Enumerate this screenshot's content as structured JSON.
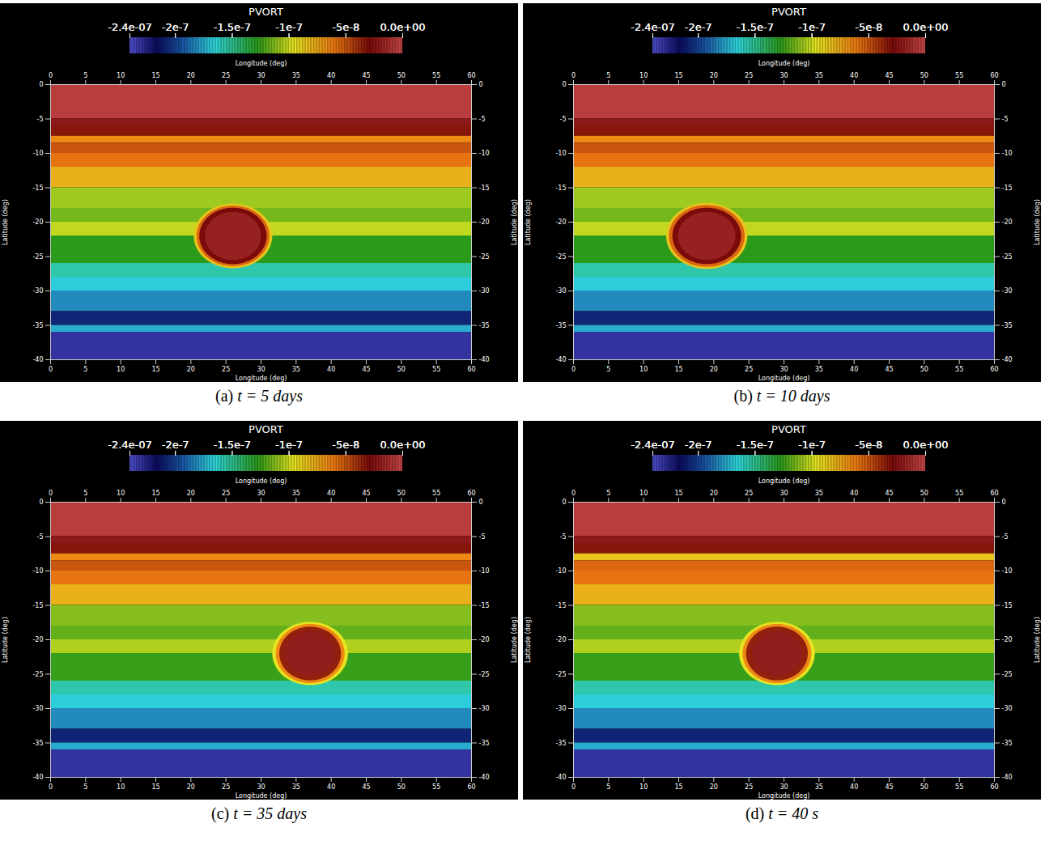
{
  "chart_data": [
    {
      "type": "heatmap",
      "title": "(a) t = 5 days",
      "xlabel": "Longitude (deg)",
      "ylabel": "Latitude (deg)",
      "xlim": [
        0,
        60
      ],
      "xticks": [
        0,
        5,
        10,
        15,
        20,
        25,
        30,
        35,
        40,
        45,
        50,
        55,
        60
      ],
      "ylim": [
        -40,
        0
      ],
      "yticks": [
        0,
        -5,
        -10,
        -15,
        -20,
        -25,
        -30,
        -35,
        -40
      ],
      "colorbar": {
        "title": "PVORT",
        "range": [
          -2.4e-07,
          0
        ],
        "ticks": [
          {
            "value": -2.4e-07,
            "label": "-2.4e-07"
          },
          {
            "value": -2e-07,
            "label": "-2e-7"
          },
          {
            "value": -1.5e-07,
            "label": "-1.5e-7"
          },
          {
            "value": -1e-07,
            "label": "-1e-7"
          },
          {
            "value": -5e-08,
            "label": "-5e-8"
          },
          {
            "value": 0,
            "label": "0.0e+00"
          }
        ]
      },
      "bands": {
        "lat_edges": [
          0,
          -5,
          -6,
          -7.5,
          -8.5,
          -10,
          -12,
          -15,
          -18,
          -20,
          -22,
          -26,
          -28,
          -30,
          -33,
          -35,
          -36,
          -40
        ],
        "values": [
          -5e-09,
          -2.2e-08,
          -3.2e-08,
          -6.5e-08,
          -5e-08,
          -5.8e-08,
          -7.8e-08,
          -1.08e-07,
          -1.15e-07,
          -1.02e-07,
          -1.27e-07,
          -1.55e-07,
          -1.68e-07,
          -1.82e-07,
          -2.08e-07,
          -1.75e-07,
          -2.3e-07
        ]
      },
      "vortex": {
        "lon": 26,
        "lat": -22,
        "rings": [
          {
            "rlon": 5.6,
            "rlat": 4.7,
            "value": -8.5e-08
          },
          {
            "rlon": 5.2,
            "rlat": 4.4,
            "value": -5.5e-08
          },
          {
            "rlon": 4.8,
            "rlat": 4.1,
            "value": -2.9e-08
          },
          {
            "rlon": 4.0,
            "rlat": 3.5,
            "value": -1.8e-08
          }
        ]
      }
    },
    {
      "type": "heatmap",
      "title": "(b) t = 10 days",
      "xlabel": "Longitude (deg)",
      "ylabel": "Latitude (deg)",
      "xlim": [
        0,
        60
      ],
      "xticks": [
        0,
        5,
        10,
        15,
        20,
        25,
        30,
        35,
        40,
        45,
        50,
        55,
        60
      ],
      "ylim": [
        -40,
        0
      ],
      "yticks": [
        0,
        -5,
        -10,
        -15,
        -20,
        -25,
        -30,
        -35,
        -40
      ],
      "colorbar": {
        "title": "PVORT",
        "range": [
          -2.4e-07,
          0
        ],
        "ticks": [
          {
            "value": -2.4e-07,
            "label": "-2.4e-07"
          },
          {
            "value": -2e-07,
            "label": "-2e-7"
          },
          {
            "value": -1.5e-07,
            "label": "-1.5e-7"
          },
          {
            "value": -1e-07,
            "label": "-1e-7"
          },
          {
            "value": -5e-08,
            "label": "-5e-8"
          },
          {
            "value": 0,
            "label": "0.0e+00"
          }
        ]
      },
      "bands": {
        "lat_edges": [
          0,
          -5,
          -6,
          -7.5,
          -8.5,
          -10,
          -12,
          -15,
          -18,
          -20,
          -22,
          -26,
          -28,
          -30,
          -33,
          -35,
          -36,
          -40
        ],
        "values": [
          -5e-09,
          -2.2e-08,
          -3.2e-08,
          -6.5e-08,
          -5e-08,
          -5.8e-08,
          -7.8e-08,
          -1.08e-07,
          -1.15e-07,
          -1.02e-07,
          -1.27e-07,
          -1.55e-07,
          -1.68e-07,
          -1.82e-07,
          -2.08e-07,
          -1.75e-07,
          -2.3e-07
        ]
      },
      "vortex": {
        "lon": 19,
        "lat": -22,
        "rings": [
          {
            "rlon": 5.8,
            "rlat": 4.8,
            "value": -8.5e-08
          },
          {
            "rlon": 5.4,
            "rlat": 4.5,
            "value": -5.5e-08
          },
          {
            "rlon": 4.9,
            "rlat": 4.1,
            "value": -2.9e-08
          },
          {
            "rlon": 4.1,
            "rlat": 3.5,
            "value": -1.8e-08
          }
        ]
      }
    },
    {
      "type": "heatmap",
      "title": "(c) t = 35 days",
      "xlabel": "Longitude (deg)",
      "ylabel": "Latitude (deg)",
      "xlim": [
        0,
        60
      ],
      "xticks": [
        0,
        5,
        10,
        15,
        20,
        25,
        30,
        35,
        40,
        45,
        50,
        55,
        60
      ],
      "ylim": [
        -40,
        0
      ],
      "yticks": [
        0,
        -5,
        -10,
        -15,
        -20,
        -25,
        -30,
        -35,
        -40
      ],
      "colorbar": {
        "title": "PVORT",
        "range": [
          -2.4e-07,
          0
        ],
        "ticks": [
          {
            "value": -2.4e-07,
            "label": "-2.4e-07"
          },
          {
            "value": -2e-07,
            "label": "-2e-7"
          },
          {
            "value": -1.5e-07,
            "label": "-1.5e-7"
          },
          {
            "value": -1e-07,
            "label": "-1e-7"
          },
          {
            "value": -5e-08,
            "label": "-5e-8"
          },
          {
            "value": 0,
            "label": "0.0e+00"
          }
        ]
      },
      "bands": {
        "lat_edges": [
          0,
          -5,
          -6,
          -7.5,
          -8.5,
          -10,
          -12,
          -15,
          -18,
          -20,
          -22,
          -26,
          -28,
          -30,
          -33,
          -35,
          -36,
          -40
        ],
        "values": [
          -5e-09,
          -2.2e-08,
          -3.2e-08,
          -6.5e-08,
          -5e-08,
          -5.8e-08,
          -7.8e-08,
          -1.12e-07,
          -1.18e-07,
          -1.05e-07,
          -1.25e-07,
          -1.55e-07,
          -1.68e-07,
          -1.82e-07,
          -2.08e-07,
          -1.75e-07,
          -2.3e-07
        ]
      },
      "vortex": {
        "lon": 37,
        "lat": -22,
        "rings": [
          {
            "rlon": 5.4,
            "rlat": 4.6,
            "value": -9.5e-08
          },
          {
            "rlon": 4.9,
            "rlat": 4.3,
            "value": -6.5e-08
          },
          {
            "rlon": 4.4,
            "rlat": 3.9,
            "value": -3.5e-08
          },
          {
            "rlon": 3.6,
            "rlat": 3.2,
            "value": -2e-08
          }
        ]
      }
    },
    {
      "type": "heatmap",
      "title": "(d) t = 40 s",
      "xlabel": "Longitude (deg)",
      "ylabel": "Latitude (deg)",
      "xlim": [
        0,
        60
      ],
      "xticks": [
        0,
        5,
        10,
        15,
        20,
        25,
        30,
        35,
        40,
        45,
        50,
        55,
        60
      ],
      "ylim": [
        -40,
        0
      ],
      "yticks": [
        0,
        -5,
        -10,
        -15,
        -20,
        -25,
        -30,
        -35,
        -40
      ],
      "colorbar": {
        "title": "PVORT",
        "range": [
          -2.4e-07,
          0
        ],
        "ticks": [
          {
            "value": -2.4e-07,
            "label": "-2.4e-07"
          },
          {
            "value": -2e-07,
            "label": "-2e-7"
          },
          {
            "value": -1.5e-07,
            "label": "-1.5e-7"
          },
          {
            "value": -1e-07,
            "label": "-1e-7"
          },
          {
            "value": -5e-08,
            "label": "-5e-8"
          },
          {
            "value": 0,
            "label": "0.0e+00"
          }
        ]
      },
      "bands": {
        "lat_edges": [
          0,
          -5,
          -6,
          -7.5,
          -8.5,
          -10,
          -12,
          -15,
          -18,
          -20,
          -22,
          -26,
          -28,
          -30,
          -33,
          -35,
          -36,
          -40
        ],
        "values": [
          -5e-09,
          -2.2e-08,
          -3.2e-08,
          -8.5e-08,
          -5.5e-08,
          -5.8e-08,
          -7.8e-08,
          -1.12e-07,
          -1.18e-07,
          -1.05e-07,
          -1.25e-07,
          -1.55e-07,
          -1.68e-07,
          -1.82e-07,
          -2.08e-07,
          -1.75e-07,
          -2.3e-07
        ]
      },
      "vortex": {
        "lon": 29,
        "lat": -22,
        "rings": [
          {
            "rlon": 5.4,
            "rlat": 4.6,
            "value": -9.5e-08
          },
          {
            "rlon": 4.9,
            "rlat": 4.3,
            "value": -6.5e-08
          },
          {
            "rlon": 4.4,
            "rlat": 3.9,
            "value": -3.5e-08
          },
          {
            "rlon": 3.6,
            "rlat": 3.2,
            "value": -2e-08
          }
        ]
      }
    }
  ]
}
